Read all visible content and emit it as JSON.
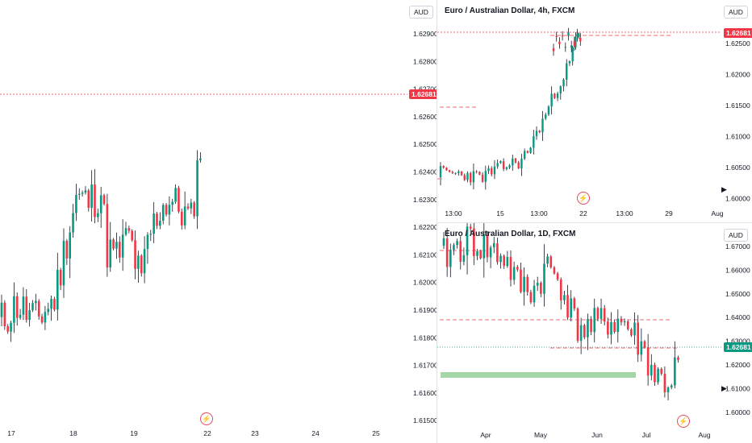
{
  "colors": {
    "up": "#089981",
    "down": "#f23645",
    "wick": "#131722",
    "ref_line": "#f23645",
    "green_zone": "#a5d6a7",
    "green_tag": "#089981",
    "red_tag": "#f23645"
  },
  "left": {
    "currency": "AUD",
    "price_tag": "1.62681",
    "y_ticks": [
      "1.62900",
      "1.62800",
      "1.62700",
      "1.62600",
      "1.62500",
      "1.62400",
      "1.62300",
      "1.62200",
      "1.62100",
      "1.62000",
      "1.61900",
      "1.61800",
      "1.61700",
      "1.61600",
      "1.61500"
    ],
    "x_ticks": [
      "17",
      "18",
      "19",
      "22",
      "23",
      "24",
      "25"
    ],
    "bolt_icon": "⚡"
  },
  "top_right": {
    "title": "Euro / Australian Dollar, 4h, FXCM",
    "currency": "AUD",
    "price_tag": "1.62681",
    "y_ticks": [
      "1.62500",
      "1.62000",
      "1.61500",
      "1.61000",
      "1.60500",
      "1.60000"
    ],
    "left_ticks": [
      "1.62900",
      "1.62800",
      "1.62700",
      "1.62600",
      "1.62500",
      "1.62400",
      "1.62300"
    ],
    "x_ticks": [
      "13:00",
      "15",
      "13:00",
      "22",
      "13:00",
      "29",
      "Aug"
    ],
    "bolt_icon": "⚡",
    "arrow_icon": "▶"
  },
  "bottom_right": {
    "title": "Euro / Australian Dollar, 1D, FXCM",
    "currency": "AUD",
    "price_tag": "1.62681",
    "y_ticks": [
      "1.67000",
      "1.66000",
      "1.65000",
      "1.64000",
      "1.63000",
      "1.62000",
      "1.61000",
      "1.60000"
    ],
    "left_ticks": [
      "1.62200",
      "1.62100",
      "1.62000",
      "1.61900",
      "1.61800",
      "1.61700",
      "1.61600",
      "1.61500"
    ],
    "x_ticks": [
      "Apr",
      "May",
      "Jun",
      "Jul",
      "Aug"
    ],
    "bolt_icon": "⚡",
    "arrow_icon": "▶"
  }
}
